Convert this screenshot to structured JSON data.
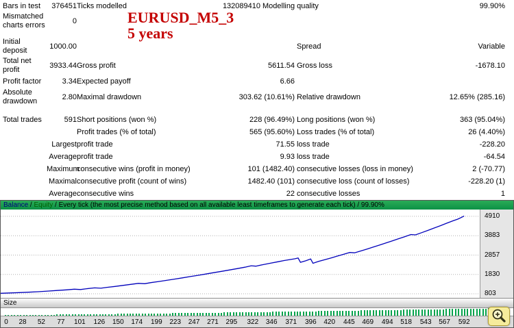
{
  "title": {
    "line1": "EURUSD_M5_3",
    "line2": "5 years"
  },
  "report": {
    "rows": [
      {
        "c1": "Bars in test",
        "c2": "376451",
        "c3": "Ticks modelled",
        "c4": "132089410",
        "c5": "Modelling quality",
        "c6": "99.90%"
      },
      {
        "c1": "Mismatched charts errors",
        "c2": "0",
        "c3": "",
        "c4": "",
        "c5": "",
        "c6": ""
      },
      {
        "c1": "Initial deposit",
        "c2": "1000.00",
        "c3": "",
        "c4": "",
        "c5": "Spread",
        "c6": "Variable"
      },
      {
        "c1": "Total net profit",
        "c2": "3933.44",
        "c3": "Gross profit",
        "c4": "5611.54",
        "c5": "Gross loss",
        "c6": "-1678.10"
      },
      {
        "c1": "Profit factor",
        "c2": "3.34",
        "c3": "Expected payoff",
        "c4": "6.66",
        "c5": "",
        "c6": ""
      },
      {
        "c1": "Absolute drawdown",
        "c2": "2.80",
        "c3": "Maximal drawdown",
        "c4": "303.62 (10.61%)",
        "c5": "Relative drawdown",
        "c6": "12.65% (285.16)"
      },
      {
        "c1": "Total trades",
        "c2": "591",
        "c3": "Short positions (won %)",
        "c4": "228 (96.49%)",
        "c5": "Long positions (won %)",
        "c6": "363 (95.04%)"
      },
      {
        "c1": "",
        "c2": "",
        "c3": "Profit trades (% of total)",
        "c4": "565 (95.60%)",
        "c5": "Loss trades (% of total)",
        "c6": "26 (4.40%)"
      },
      {
        "c1": "",
        "c2": "Largest",
        "c3": "profit trade",
        "c4": "71.55",
        "c5": "loss trade",
        "c6": "-228.20"
      },
      {
        "c1": "",
        "c2": "Average",
        "c3": "profit trade",
        "c4": "9.93",
        "c5": "loss trade",
        "c6": "-64.54"
      },
      {
        "c1": "",
        "c2": "Maximum",
        "c3": "consecutive wins (profit in money)",
        "c4": "101 (1482.40)",
        "c5": "consecutive losses (loss in money)",
        "c6": "2 (-70.77)"
      },
      {
        "c1": "",
        "c2": "Maximal",
        "c3": "consecutive profit (count of wins)",
        "c4": "1482.40 (101)",
        "c5": "consecutive loss (count of losses)",
        "c6": "-228.20 (1)"
      },
      {
        "c1": "",
        "c2": "Average",
        "c3": "consecutive wins",
        "c4": "22",
        "c5": "consecutive losses",
        "c6": "1"
      }
    ]
  },
  "graph": {
    "header": {
      "balance": "Balance",
      "sep": " / ",
      "equity": "Equity",
      "rest": " / Every tick (the most precise method based on all available least timeframes to generate each tick) / 99.90%"
    },
    "size_label": "Size",
    "colors": {
      "header_bg": "#169a4c",
      "balance_line": "#0000bb",
      "equity_text": "#005f00",
      "title_red": "#c40000"
    }
  },
  "chart_data": {
    "type": "line",
    "title": "Balance / Equity / Every tick (the most precise method based on all available least timeframes to generate each tick) / 99.90%",
    "x_ticks": [
      0,
      28,
      52,
      77,
      101,
      126,
      150,
      174,
      199,
      223,
      247,
      271,
      295,
      322,
      346,
      371,
      396,
      420,
      445,
      469,
      494,
      518,
      543,
      567,
      592
    ],
    "y_ticks": [
      4910,
      3883,
      2857,
      1830,
      803
    ],
    "x_range": [
      0,
      612
    ],
    "y_range": [
      587,
      5270
    ],
    "grid_color": "#b0b0b0",
    "series": [
      {
        "name": "Balance",
        "color": "#0000bb",
        "points": [
          [
            0,
            830
          ],
          [
            12,
            848
          ],
          [
            24,
            868
          ],
          [
            36,
            890
          ],
          [
            48,
            915
          ],
          [
            60,
            945
          ],
          [
            72,
            978
          ],
          [
            84,
            1012
          ],
          [
            94,
            1048
          ],
          [
            102,
            1030
          ],
          [
            110,
            1075
          ],
          [
            120,
            1118
          ],
          [
            128,
            1098
          ],
          [
            136,
            1145
          ],
          [
            146,
            1195
          ],
          [
            156,
            1248
          ],
          [
            166,
            1302
          ],
          [
            176,
            1358
          ],
          [
            184,
            1338
          ],
          [
            192,
            1395
          ],
          [
            202,
            1455
          ],
          [
            212,
            1518
          ],
          [
            222,
            1582
          ],
          [
            232,
            1648
          ],
          [
            242,
            1715
          ],
          [
            252,
            1783
          ],
          [
            262,
            1852
          ],
          [
            272,
            1922
          ],
          [
            282,
            1993
          ],
          [
            292,
            2065
          ],
          [
            302,
            2138
          ],
          [
            312,
            2212
          ],
          [
            320,
            2288
          ],
          [
            326,
            2268
          ],
          [
            334,
            2342
          ],
          [
            344,
            2420
          ],
          [
            354,
            2500
          ],
          [
            362,
            2565
          ],
          [
            370,
            2620
          ],
          [
            376,
            2660
          ],
          [
            380,
            2700
          ],
          [
            383,
            2472
          ],
          [
            390,
            2560
          ],
          [
            396,
            2650
          ],
          [
            399,
            2422
          ],
          [
            406,
            2520
          ],
          [
            414,
            2612
          ],
          [
            422,
            2705
          ],
          [
            430,
            2800
          ],
          [
            438,
            2896
          ],
          [
            446,
            2994
          ],
          [
            452,
            2974
          ],
          [
            460,
            3074
          ],
          [
            468,
            3176
          ],
          [
            476,
            3280
          ],
          [
            484,
            3386
          ],
          [
            492,
            3494
          ],
          [
            500,
            3604
          ],
          [
            508,
            3716
          ],
          [
            516,
            3830
          ],
          [
            524,
            3946
          ],
          [
            530,
            3926
          ],
          [
            538,
            4046
          ],
          [
            546,
            4168
          ],
          [
            554,
            4292
          ],
          [
            562,
            4418
          ],
          [
            570,
            4546
          ],
          [
            578,
            4676
          ],
          [
            584,
            4760
          ],
          [
            589,
            4860
          ],
          [
            592,
            4930
          ]
        ]
      }
    ],
    "size_bars": {
      "label": "Size",
      "color": "#00a24a",
      "count": 165,
      "height_min": 1,
      "height_max": 11
    }
  }
}
